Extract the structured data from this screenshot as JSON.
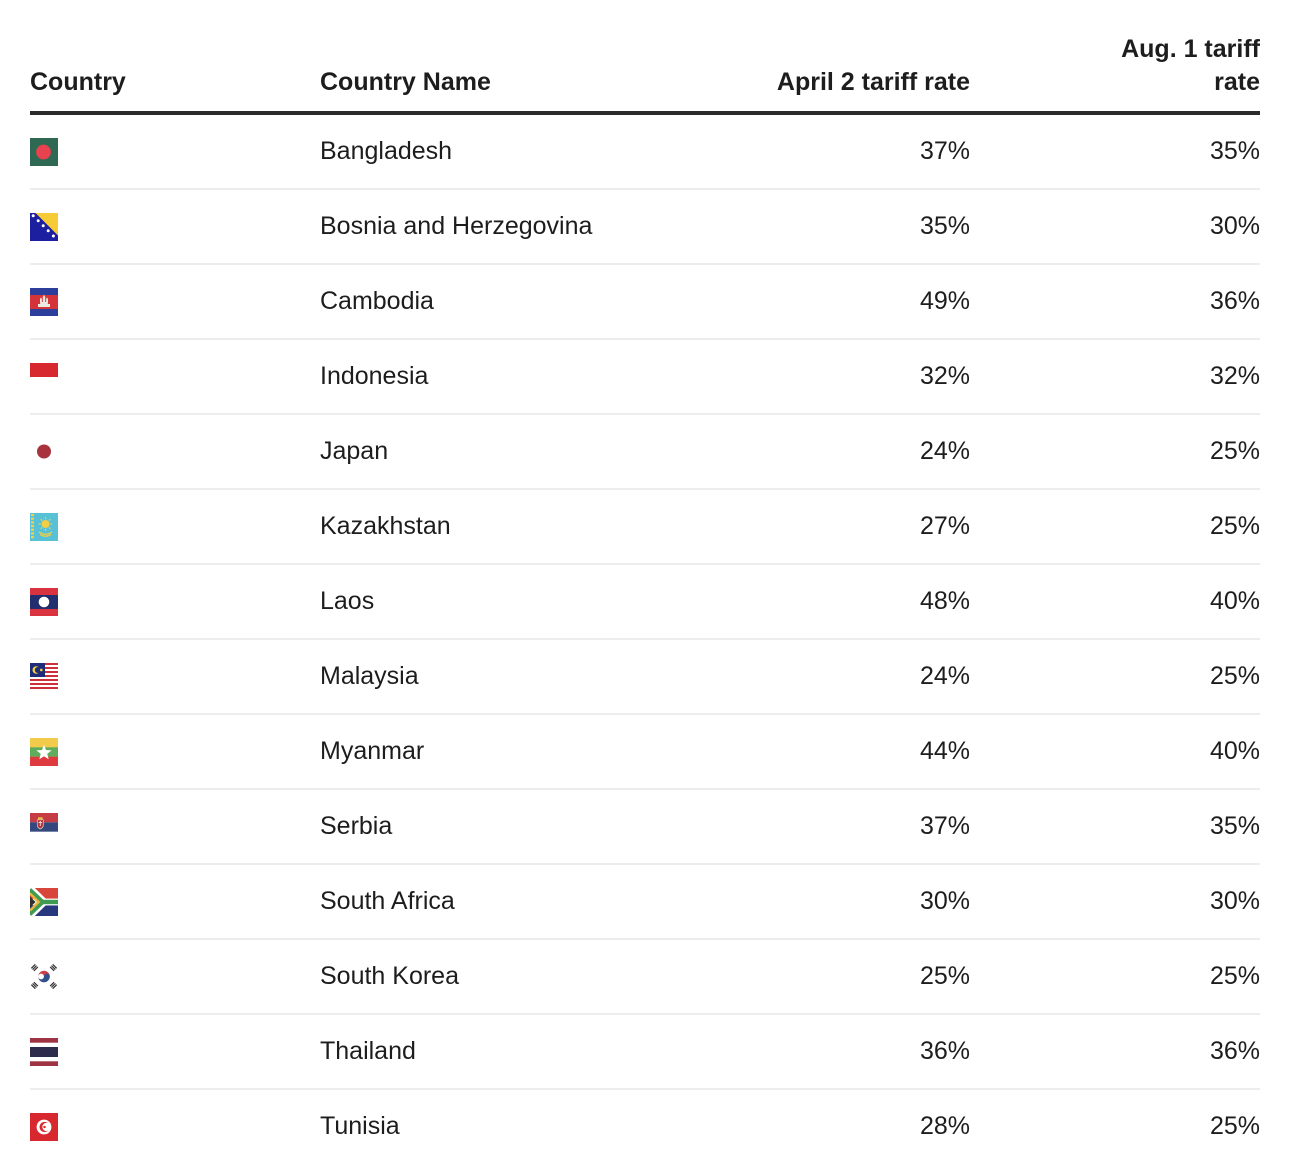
{
  "table": {
    "columns": [
      {
        "label": "Country"
      },
      {
        "label": "Country Name"
      },
      {
        "label": "April 2 tariff rate"
      },
      {
        "label": "Aug. 1 tariff rate"
      }
    ],
    "rows": [
      {
        "flag_icon": "bangladesh-flag-icon",
        "name": "Bangladesh",
        "april2_rate": "37%",
        "aug1_rate": "35%"
      },
      {
        "flag_icon": "bosnia-herzegovina-flag-icon",
        "name": "Bosnia and Herzegovina",
        "april2_rate": "35%",
        "aug1_rate": "30%"
      },
      {
        "flag_icon": "cambodia-flag-icon",
        "name": "Cambodia",
        "april2_rate": "49%",
        "aug1_rate": "36%"
      },
      {
        "flag_icon": "indonesia-flag-icon",
        "name": "Indonesia",
        "april2_rate": "32%",
        "aug1_rate": "32%"
      },
      {
        "flag_icon": "japan-flag-icon",
        "name": "Japan",
        "april2_rate": "24%",
        "aug1_rate": "25%"
      },
      {
        "flag_icon": "kazakhstan-flag-icon",
        "name": "Kazakhstan",
        "april2_rate": "27%",
        "aug1_rate": "25%"
      },
      {
        "flag_icon": "laos-flag-icon",
        "name": "Laos",
        "april2_rate": "48%",
        "aug1_rate": "40%"
      },
      {
        "flag_icon": "malaysia-flag-icon",
        "name": "Malaysia",
        "april2_rate": "24%",
        "aug1_rate": "25%"
      },
      {
        "flag_icon": "myanmar-flag-icon",
        "name": "Myanmar",
        "april2_rate": "44%",
        "aug1_rate": "40%"
      },
      {
        "flag_icon": "serbia-flag-icon",
        "name": "Serbia",
        "april2_rate": "37%",
        "aug1_rate": "35%"
      },
      {
        "flag_icon": "south-africa-flag-icon",
        "name": "South Africa",
        "april2_rate": "30%",
        "aug1_rate": "30%"
      },
      {
        "flag_icon": "south-korea-flag-icon",
        "name": "South Korea",
        "april2_rate": "25%",
        "aug1_rate": "25%"
      },
      {
        "flag_icon": "thailand-flag-icon",
        "name": "Thailand",
        "april2_rate": "36%",
        "aug1_rate": "36%"
      },
      {
        "flag_icon": "tunisia-flag-icon",
        "name": "Tunisia",
        "april2_rate": "28%",
        "aug1_rate": "25%"
      }
    ]
  },
  "chart_data": {
    "type": "table",
    "title": "",
    "columns": [
      "Country",
      "Country Name",
      "April 2 tariff rate",
      "Aug. 1 tariff rate"
    ],
    "categories": [
      "Bangladesh",
      "Bosnia and Herzegovina",
      "Cambodia",
      "Indonesia",
      "Japan",
      "Kazakhstan",
      "Laos",
      "Malaysia",
      "Myanmar",
      "Serbia",
      "South Africa",
      "South Korea",
      "Thailand",
      "Tunisia"
    ],
    "series": [
      {
        "name": "April 2 tariff rate (%)",
        "values": [
          37,
          35,
          49,
          32,
          24,
          27,
          48,
          24,
          44,
          37,
          30,
          25,
          36,
          28
        ]
      },
      {
        "name": "Aug. 1 tariff rate (%)",
        "values": [
          35,
          30,
          36,
          32,
          25,
          25,
          40,
          25,
          40,
          35,
          30,
          25,
          36,
          25
        ]
      }
    ]
  },
  "colors": {
    "text": "#1d1d1d",
    "header_rule": "#2b2b2b",
    "row_rule": "#ededed",
    "background": "#ffffff"
  }
}
